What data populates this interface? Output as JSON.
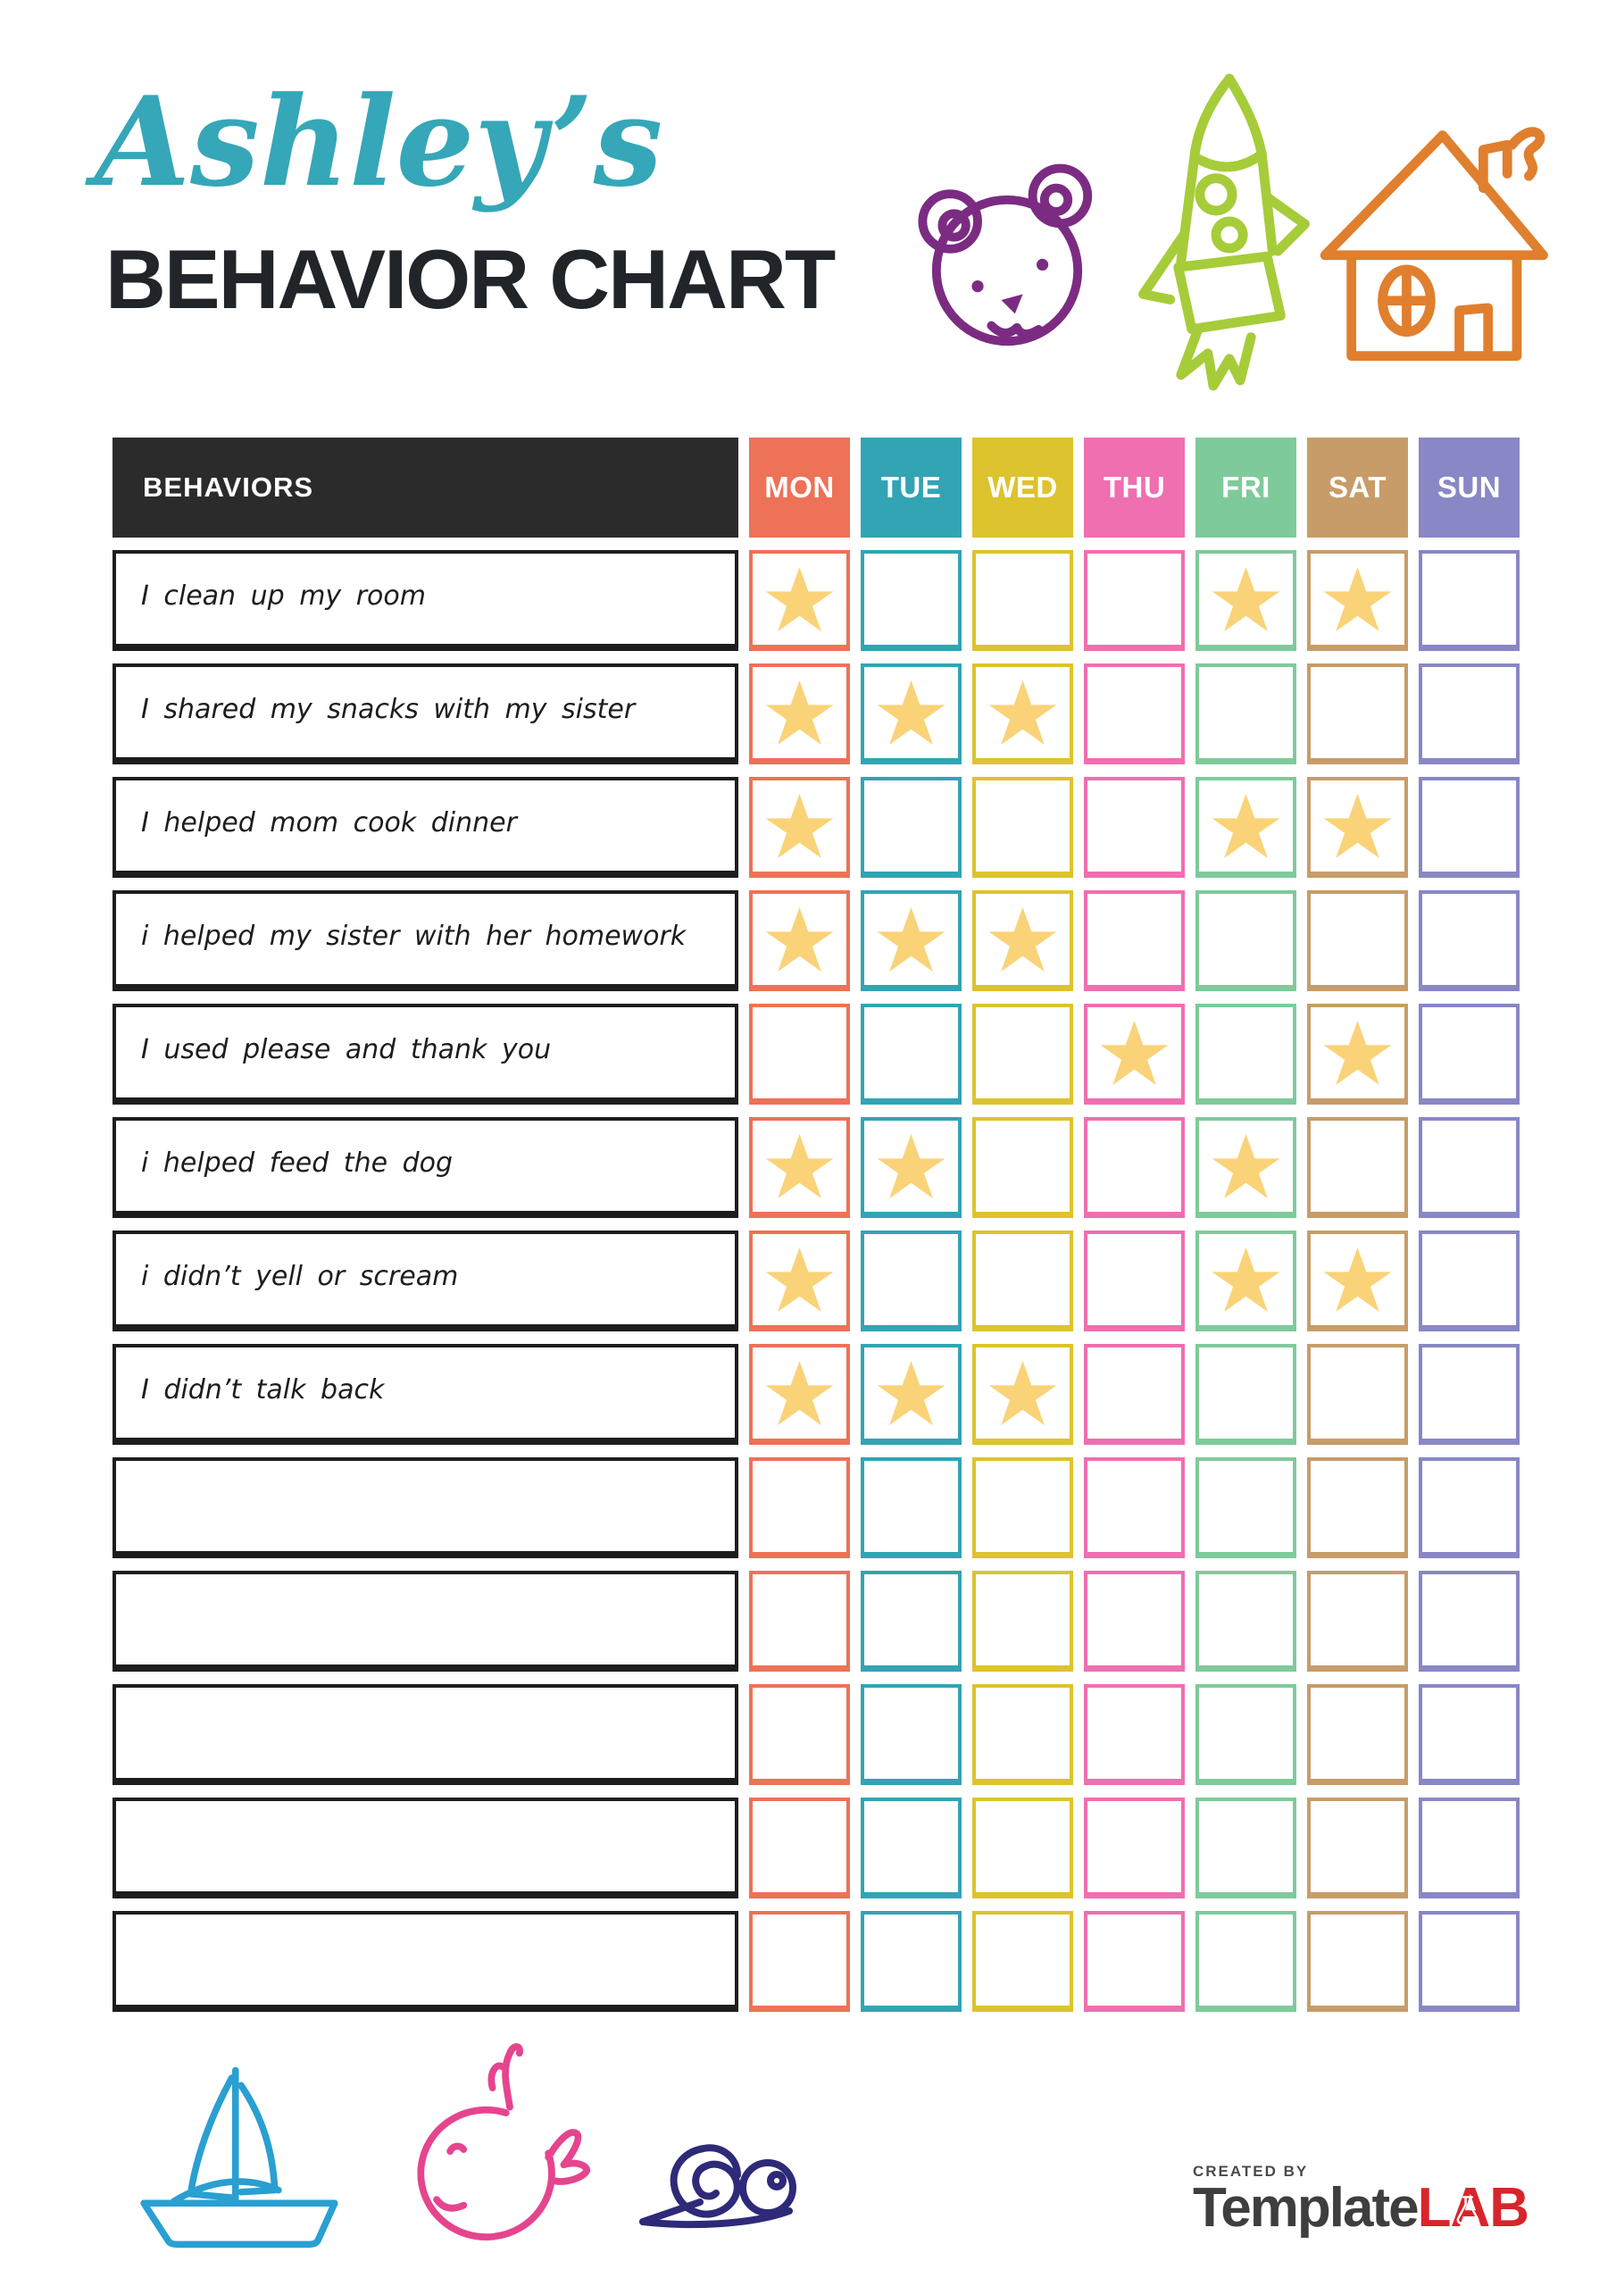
{
  "title": {
    "script": "Ashley’s",
    "main": "BEHAVIOR CHART"
  },
  "colors": {
    "title_teal": "#35a7b8",
    "title_dark": "#212529",
    "header_dark": "#2b2b2b",
    "brand_grey": "#3e3e3e",
    "brand_red": "#d7252c",
    "bear_purple": "#7b2c82",
    "rocket_green": "#a6cc39",
    "house_orange": "#e07f2e",
    "boat_blue": "#2a9fd1",
    "whale_pink": "#e5458e",
    "snail_indigo": "#2e2a78"
  },
  "table": {
    "behaviors_label": "BEHAVIORS",
    "star_color": "#fad378",
    "days": [
      {
        "label": "MON",
        "color": "#ed7257"
      },
      {
        "label": "TUE",
        "color": "#32a4b4"
      },
      {
        "label": "WED",
        "color": "#ddc32d"
      },
      {
        "label": "THU",
        "color": "#ef6fb0"
      },
      {
        "label": "FRI",
        "color": "#7fca9b"
      },
      {
        "label": "SAT",
        "color": "#c79c69"
      },
      {
        "label": "SUN",
        "color": "#8987c5"
      }
    ],
    "rows": [
      {
        "label": "I clean up my room",
        "stars": [
          "MON",
          "FRI",
          "SAT"
        ]
      },
      {
        "label": "I shared my snacks with my sister",
        "stars": [
          "MON",
          "TUE",
          "WED"
        ]
      },
      {
        "label": "I helped mom cook dinner",
        "stars": [
          "MON",
          "FRI",
          "SAT"
        ]
      },
      {
        "label": "i helped my sister with her homework",
        "stars": [
          "MON",
          "TUE",
          "WED"
        ]
      },
      {
        "label": "I used please and thank you",
        "stars": [
          "THU",
          "SAT"
        ]
      },
      {
        "label": "i helped feed the dog",
        "stars": [
          "MON",
          "TUE",
          "FRI"
        ]
      },
      {
        "label": "i didn’t yell or scream",
        "stars": [
          "MON",
          "FRI",
          "SAT"
        ]
      },
      {
        "label": "I didn’t talk back",
        "stars": [
          "MON",
          "TUE",
          "WED"
        ]
      },
      {
        "label": "",
        "stars": []
      },
      {
        "label": "",
        "stars": []
      },
      {
        "label": "",
        "stars": []
      },
      {
        "label": "",
        "stars": []
      },
      {
        "label": "",
        "stars": []
      }
    ]
  },
  "footer": {
    "created_by": "CREATED BY",
    "brand_name": "Template",
    "brand_l": "L",
    "brand_a": "A",
    "brand_b": "B"
  }
}
